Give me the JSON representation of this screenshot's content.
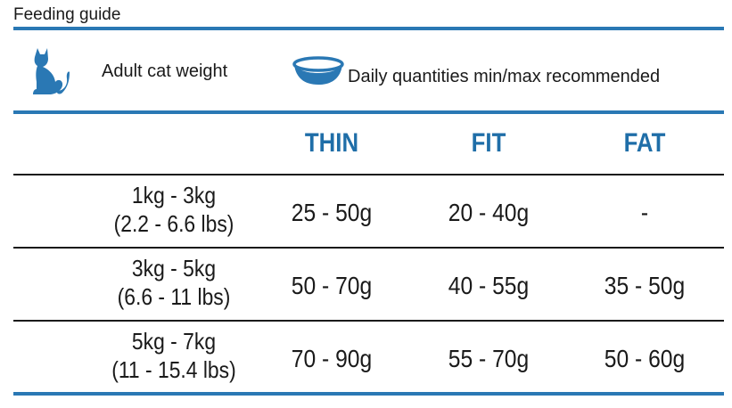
{
  "title": "Feeding guide",
  "header": {
    "cat_icon": "cat-icon",
    "bowl_icon": "food-bowl-icon",
    "weight_label": "Adult cat weight",
    "quantity_label": "Daily quantities min/max recommended"
  },
  "columns": {
    "thin": "THIN",
    "fit": "FIT",
    "fat": "FAT"
  },
  "rows": [
    {
      "weight_kg": "1kg - 3kg",
      "weight_lbs": "(2.2 - 6.6 lbs)",
      "thin": "25 - 50g",
      "fit": "20 - 40g",
      "fat": "-"
    },
    {
      "weight_kg": "3kg - 5kg",
      "weight_lbs": "(6.6 - 11 lbs)",
      "thin": "50 - 70g",
      "fit": "40 - 55g",
      "fat": "35 - 50g"
    },
    {
      "weight_kg": "5kg - 7kg",
      "weight_lbs": "(11 - 15.4 lbs)",
      "thin": "70 - 90g",
      "fit": "55 - 70g",
      "fat": "50 - 60g"
    }
  ],
  "colors": {
    "accent": "#2a78b4",
    "heading": "#1f6ea8"
  }
}
